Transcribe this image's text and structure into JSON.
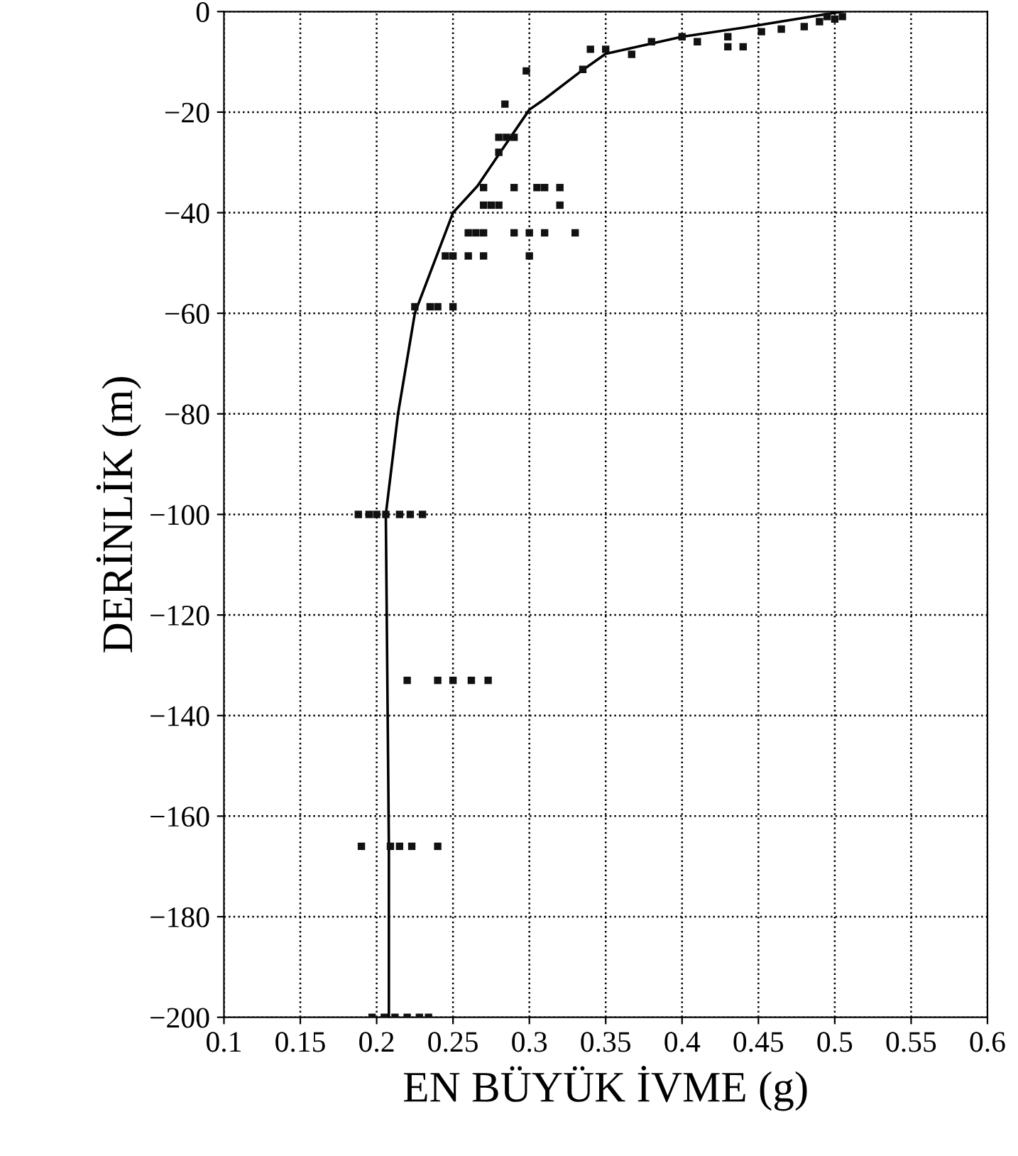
{
  "chart_data": {
    "type": "scatter",
    "xlabel": "EN BÜYÜK İVME (g)",
    "ylabel": "DERİNLİK (m)",
    "xlim": [
      0.1,
      0.6
    ],
    "ylim": [
      -200,
      0
    ],
    "xticks": [
      0.1,
      0.15,
      0.2,
      0.25,
      0.3,
      0.35,
      0.4,
      0.45,
      0.5,
      0.55,
      0.6
    ],
    "yticks": [
      0,
      {
        "value": -20,
        "label": "−20"
      },
      {
        "value": -40,
        "label": "−40"
      },
      {
        "value": -60,
        "label": "−60"
      },
      {
        "value": -80,
        "label": "−80"
      },
      {
        "value": -100,
        "label": "−100"
      },
      {
        "value": -120,
        "label": "−120"
      },
      {
        "value": -140,
        "label": "−140"
      },
      {
        "value": -160,
        "label": "−160"
      },
      {
        "value": -180,
        "label": "−180"
      },
      {
        "value": -200,
        "label": "−200"
      }
    ],
    "grid": true,
    "legend": false,
    "series": [
      {
        "marker": "square",
        "color": "#111111",
        "x": [
          0.505,
          0.5,
          0.495,
          0.49,
          0.48,
          0.465,
          0.452,
          0.44,
          0.43,
          0.43,
          0.41,
          0.4,
          0.38,
          0.367,
          0.35,
          0.34,
          0.335,
          0.298,
          0.284,
          0.28,
          0.285,
          0.29,
          0.28,
          0.27,
          0.29,
          0.305,
          0.31,
          0.32,
          0.27,
          0.275,
          0.28,
          0.32,
          0.26,
          0.265,
          0.27,
          0.29,
          0.3,
          0.31,
          0.33,
          0.245,
          0.25,
          0.26,
          0.27,
          0.3,
          0.225,
          0.235,
          0.24,
          0.25,
          0.188,
          0.195,
          0.2,
          0.206,
          0.215,
          0.222,
          0.23,
          0.22,
          0.24,
          0.25,
          0.262,
          0.273,
          0.19,
          0.209,
          0.215,
          0.223,
          0.24,
          0.197,
          0.205,
          0.212,
          0.22,
          0.228,
          0.234
        ],
        "values": [
          -1,
          -1.5,
          -1,
          -2,
          -3,
          -3.5,
          -4,
          -7,
          -5,
          -7,
          -6,
          -5,
          -6,
          -8.5,
          -7.5,
          -7.5,
          -11.5,
          -11.8,
          -18.4,
          -25,
          -25,
          -25,
          -28,
          -35,
          -35,
          -35,
          -35,
          -35,
          -38.5,
          -38.5,
          -38.5,
          -38.5,
          -44,
          -44,
          -44,
          -44,
          -44,
          -44,
          -44,
          -48.6,
          -48.6,
          -48.6,
          -48.6,
          -48.6,
          -58.7,
          -58.7,
          -58.7,
          -58.7,
          -100,
          -100,
          -100,
          -100,
          -100,
          -100,
          -100,
          -133,
          -133,
          -133,
          -133,
          -133,
          -166,
          -166,
          -166,
          -166,
          -166,
          -200,
          -200,
          -200,
          -200,
          -200,
          -200
        ]
      },
      {
        "type": "line",
        "marker": "none",
        "line_style": "solid",
        "color": "#000000",
        "x": [
          0.505,
          0.44,
          0.4,
          0.35,
          0.335,
          0.31,
          0.3,
          0.28,
          0.266,
          0.25,
          0.225,
          0.214,
          0.206,
          0.207,
          0.208,
          0.208
        ],
        "values": [
          0,
          -3.2,
          -5,
          -8.4,
          -11.6,
          -17.4,
          -19.5,
          -28.4,
          -34.7,
          -40,
          -60,
          -80,
          -100,
          -133,
          -166,
          -200
        ]
      }
    ]
  }
}
